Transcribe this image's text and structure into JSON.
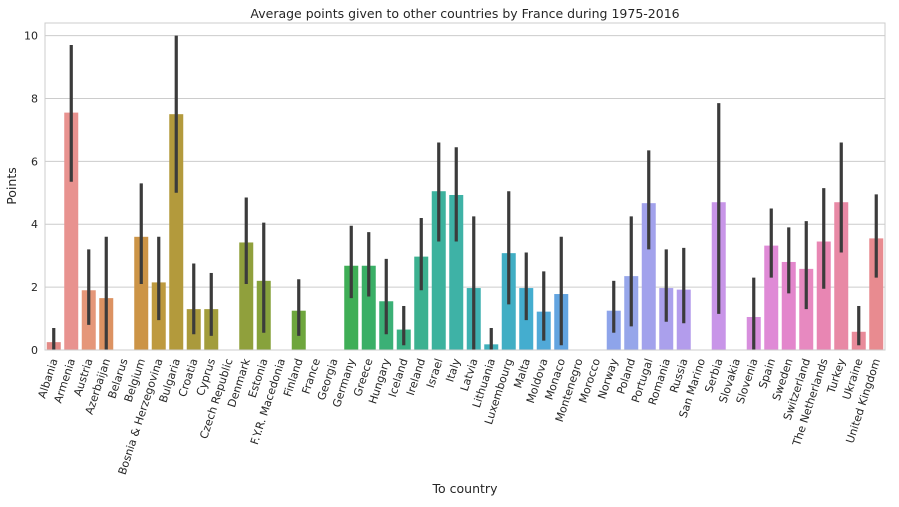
{
  "chart_data": {
    "type": "bar",
    "title": "Average points given to other countries by France during 1975-2016",
    "xlabel": "To country",
    "ylabel": "Points",
    "ylim": [
      0,
      10.4
    ],
    "yticks": [
      0,
      2,
      4,
      6,
      8,
      10
    ],
    "grid": true,
    "style": "seaborn whitegrid, bars with 95% confidence interval error bars",
    "error_bar_color": "#3b3b3b",
    "categories": [
      "Albania",
      "Armenia",
      "Austria",
      "Azerbaijan",
      "Belarus",
      "Belgium",
      "Bosnia & Herzegovina",
      "Bulgaria",
      "Croatia",
      "Cyprus",
      "Czech Republic",
      "Denmark",
      "Estonia",
      "F.Y.R. Macedonia",
      "Finland",
      "France",
      "Georgia",
      "Germany",
      "Greece",
      "Hungary",
      "Iceland",
      "Ireland",
      "Israel",
      "Italy",
      "Latvia",
      "Lithuania",
      "Luxembourg",
      "Malta",
      "Moldova",
      "Monaco",
      "Montenegro",
      "Morocco",
      "Norway",
      "Poland",
      "Portugal",
      "Romania",
      "Russia",
      "San Marino",
      "Serbia",
      "Slovakia",
      "Slovenia",
      "Spain",
      "Sweden",
      "Switzerland",
      "The Netherlands",
      "Turkey",
      "Ukraine",
      "United Kingdom"
    ],
    "values": [
      0.25,
      7.55,
      1.9,
      1.65,
      0,
      3.6,
      2.15,
      7.5,
      1.3,
      1.3,
      0,
      3.42,
      2.2,
      0,
      1.25,
      0,
      0,
      2.68,
      2.68,
      1.55,
      0.65,
      2.97,
      5.05,
      4.93,
      1.97,
      0.18,
      3.08,
      1.97,
      1.22,
      1.78,
      0,
      0,
      1.25,
      2.35,
      4.67,
      1.97,
      1.92,
      0,
      4.7,
      0,
      1.05,
      3.32,
      2.8,
      2.58,
      3.45,
      4.7,
      0.58,
      3.55
    ],
    "ci_low": [
      0,
      5.35,
      0.8,
      0,
      0,
      2.1,
      0.95,
      5.0,
      0.5,
      0.45,
      0,
      2.1,
      0.55,
      0,
      0.45,
      0,
      0,
      1.65,
      1.7,
      0.5,
      0.15,
      1.9,
      3.45,
      3.45,
      0,
      0,
      1.45,
      0.95,
      0.3,
      0.15,
      0,
      0,
      0.55,
      0.75,
      3.2,
      0.9,
      0.85,
      0,
      1.15,
      0,
      0,
      2.3,
      1.8,
      1.3,
      1.95,
      3.1,
      0.15,
      2.3
    ],
    "ci_high": [
      0.7,
      9.7,
      3.2,
      3.6,
      0,
      5.3,
      3.6,
      10.0,
      2.75,
      2.45,
      0,
      4.85,
      4.05,
      0,
      2.25,
      0,
      0,
      3.95,
      3.75,
      2.9,
      1.4,
      4.2,
      6.6,
      6.45,
      4.25,
      0.7,
      5.05,
      3.1,
      2.5,
      3.6,
      0,
      0,
      2.2,
      4.25,
      6.35,
      3.2,
      3.25,
      0,
      7.85,
      0,
      2.3,
      4.5,
      3.9,
      4.1,
      5.15,
      6.6,
      1.4,
      4.95
    ],
    "colors": [
      "#e28a86",
      "#e8928f",
      "#e59779",
      "#dc9262",
      "#d6914d",
      "#cc9446",
      "#be9a3f",
      "#b39a3c",
      "#aa9a3c",
      "#a29d3c",
      "#9aa13c",
      "#90a03c",
      "#87a23c",
      "#7aa43c",
      "#6ea63d",
      "#5ea83e",
      "#4cab45",
      "#3fae56",
      "#3aaf66",
      "#3bb076",
      "#3bb184",
      "#3cb190",
      "#3cb29d",
      "#3eb2a6",
      "#3fb1b1",
      "#40b0bb",
      "#41aec4",
      "#44adcf",
      "#51a9d8",
      "#62a4e0",
      "#7aa0e4",
      "#8aa0e8",
      "#8ea4ea",
      "#96a6ea",
      "#a2a2ec",
      "#aaa0ec",
      "#b39cec",
      "#be97eb",
      "#c895e8",
      "#d091e3",
      "#d78edd",
      "#df8ad6",
      "#e386cc",
      "#e789c0",
      "#e886b3",
      "#e889a5",
      "#e98b9a",
      "#e88b90"
    ]
  }
}
